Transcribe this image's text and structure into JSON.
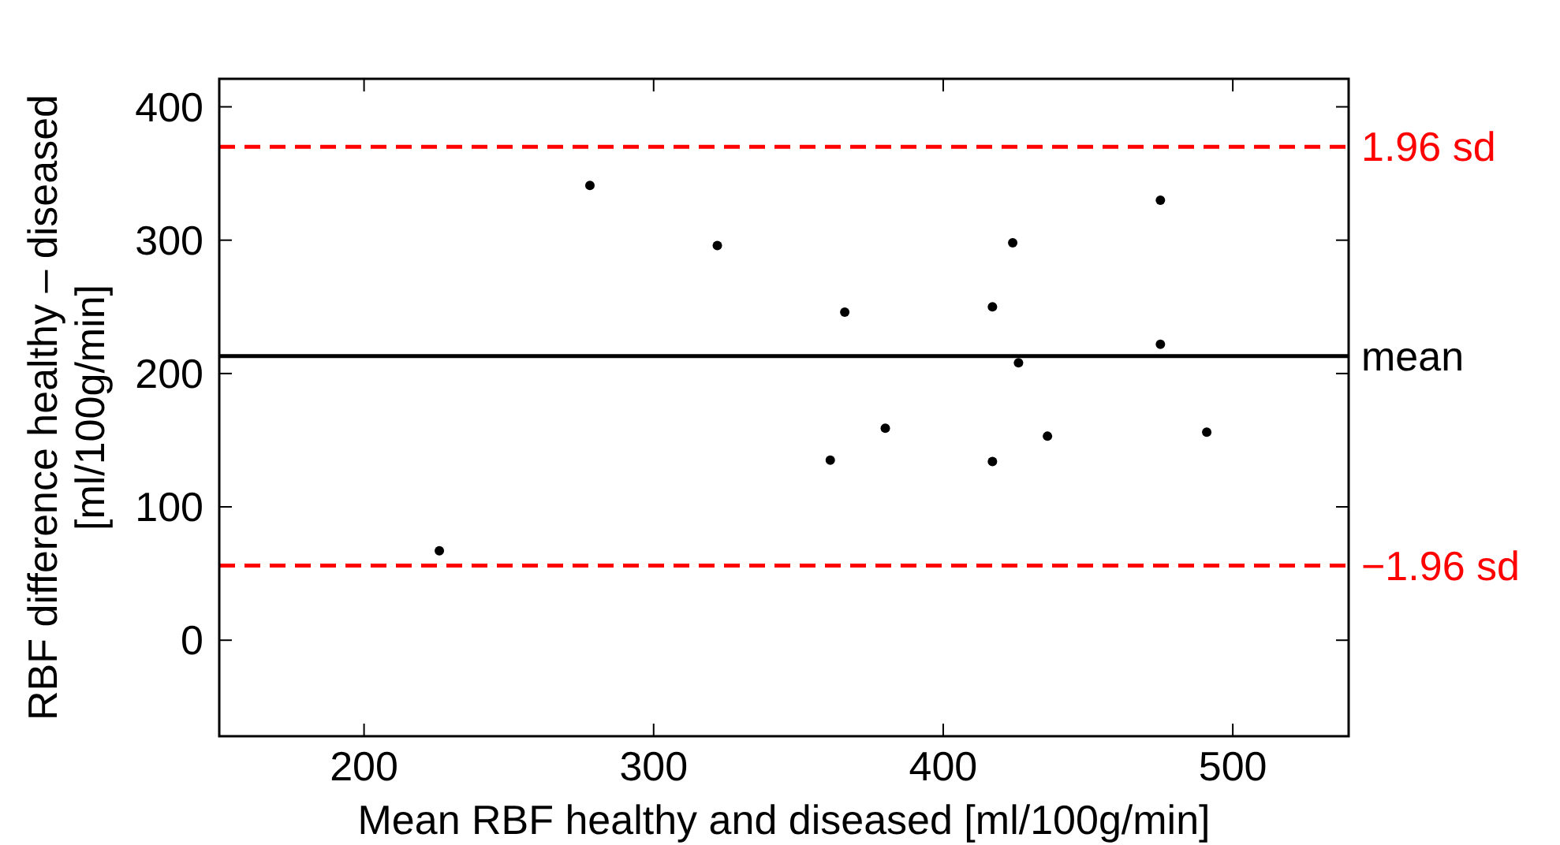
{
  "chart_data": {
    "type": "scatter",
    "xlabel": "Mean RBF healthy and diseased [ml/100g/min]",
    "ylabel": "RBF difference healthy – diseased\n[ml/100g/min]",
    "x": [
      226,
      278,
      322,
      366,
      361,
      380,
      417,
      424,
      426,
      417,
      436,
      475,
      475,
      491
    ],
    "series": [
      {
        "color": "#000000",
        "values": [
          67,
          341,
          296,
          246,
          135,
          159,
          250,
          298,
          208,
          134,
          153,
          330,
          222,
          156
        ]
      }
    ],
    "marker": "circle",
    "xlim": [
      150,
      540
    ],
    "ylim": [
      -72,
      421
    ],
    "xticks": [
      200,
      300,
      400,
      500
    ],
    "yticks": [
      0,
      100,
      200,
      300,
      400
    ],
    "grid": false,
    "ref_lines": [
      {
        "axis": "y",
        "value": 370,
        "label": "1.96 sd",
        "color": "#ff0000",
        "line_style": "dashed"
      },
      {
        "axis": "y",
        "value": 213,
        "label": "mean",
        "color": "#000000",
        "line_style": "solid"
      },
      {
        "axis": "y",
        "value": 56,
        "label": "−1.96 sd",
        "color": "#ff0000",
        "line_style": "dashed"
      }
    ]
  }
}
